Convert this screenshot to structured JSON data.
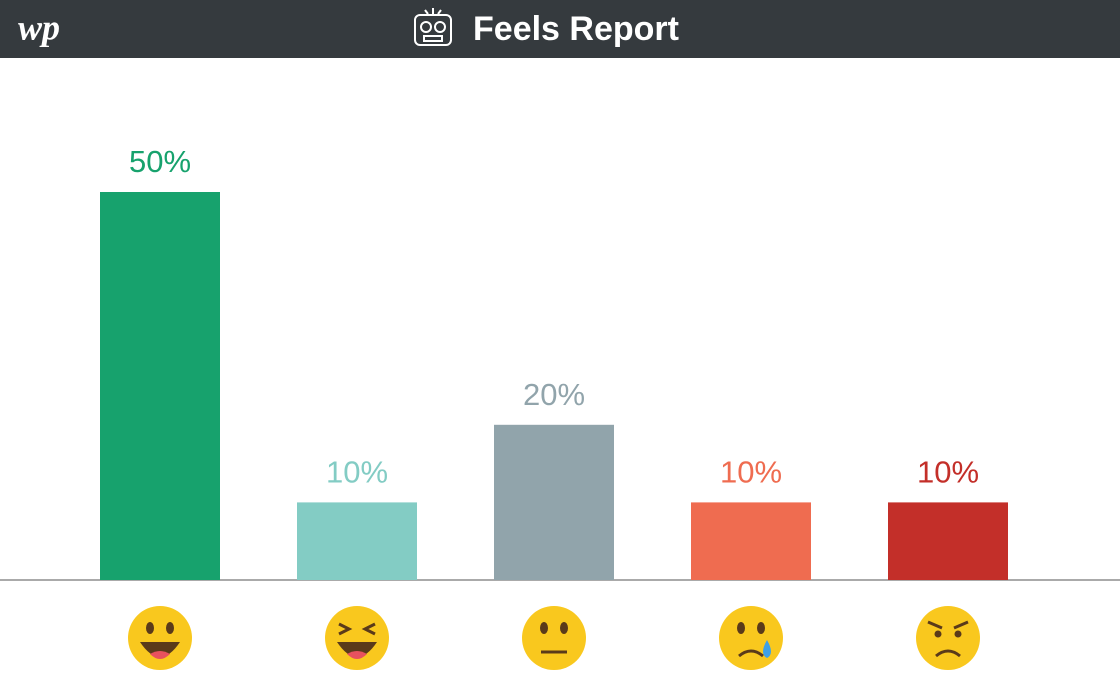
{
  "logo": "wp",
  "chart_data": {
    "type": "bar",
    "title": "Feels Report",
    "values": [
      50,
      10,
      20,
      10,
      10
    ],
    "value_labels": [
      "50%",
      "10%",
      "20%",
      "10%",
      "10%"
    ],
    "colors": [
      "#17a26d",
      "#83ccc4",
      "#91a4ab",
      "#ef6c50",
      "#c32f29"
    ]
  }
}
